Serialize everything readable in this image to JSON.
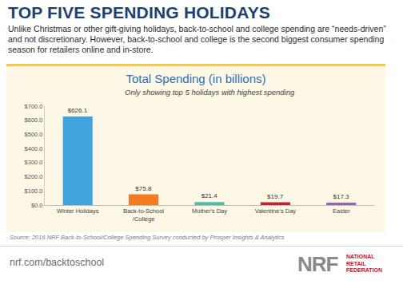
{
  "header": {
    "title": "TOP FIVE SPENDING HOLIDAYS",
    "text": "Unlike Christmas or other gift-giving holidays, back-to-school and college spending are “needs-driven” and not discretionary. However, back-to-school and college is the second biggest consumer spending season for retailers online and in-store."
  },
  "chart_data": {
    "type": "bar",
    "title": "Total Spending (in billions)",
    "subtitle": "Only showing top 5 holidays with highest spending",
    "categories": [
      "Winter Holidays",
      "Back-to-School/College",
      "Mother's Day",
      "Valentine's Day",
      "Easter"
    ],
    "values": [
      626.1,
      75.8,
      21.4,
      19.7,
      17.3
    ],
    "value_labels": [
      "$626.1",
      "$75.8",
      "$21.4",
      "$19.7",
      "$17.3"
    ],
    "colors": [
      "#3fa3de",
      "#f47b20",
      "#4dbfa9",
      "#c8202f",
      "#9466b0"
    ],
    "ylim": [
      0,
      700
    ],
    "yticks": [
      {
        "value": 0,
        "label": "$0.0"
      },
      {
        "value": 100,
        "label": "$100.0"
      },
      {
        "value": 200,
        "label": "$200.0"
      },
      {
        "value": 300,
        "label": "$300.0"
      },
      {
        "value": 400,
        "label": "$400.0"
      },
      {
        "value": 500,
        "label": "$500.0"
      },
      {
        "value": 600,
        "label": "$600.0"
      },
      {
        "value": 700,
        "label": "$700.0"
      }
    ],
    "grid": false,
    "data_labels": true
  },
  "source": "Source: 2016 NRF Back-to-School/College Spending Survey conducted by Prosper Insights & Analytics",
  "footer": {
    "url": "nrf.com/backtoschool",
    "logo": "NRF",
    "logo_text": [
      "NATIONAL",
      "RETAIL",
      "FEDERATION"
    ]
  }
}
